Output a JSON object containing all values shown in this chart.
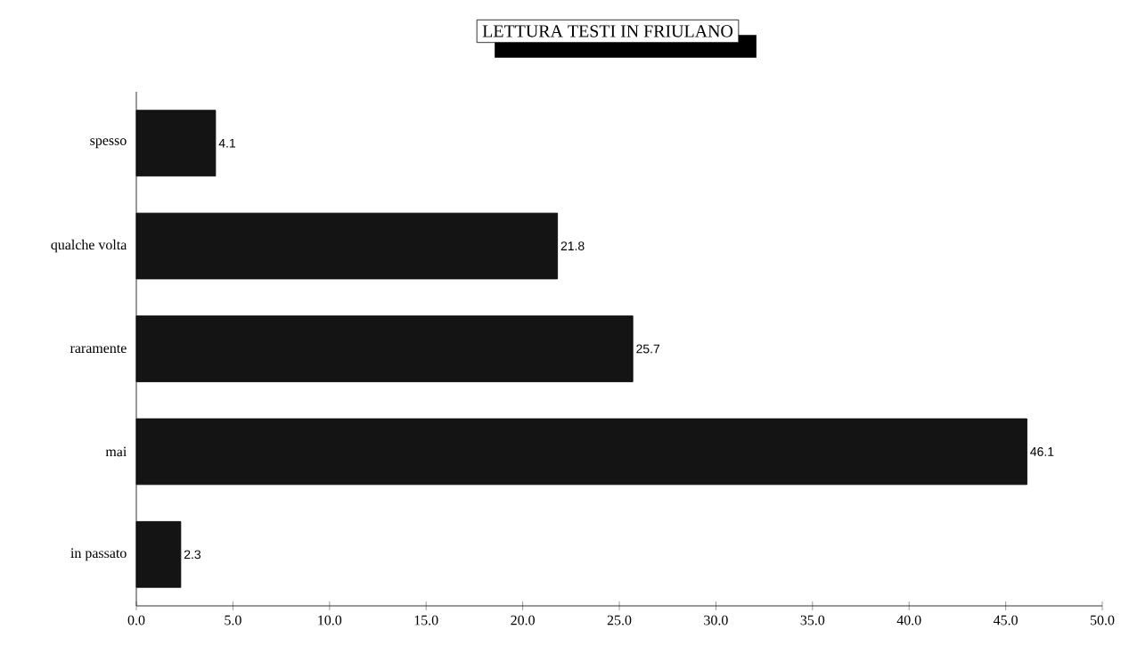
{
  "chart_data": {
    "type": "bar",
    "orientation": "horizontal",
    "title": "LETTURA TESTI IN FRIULANO",
    "categories": [
      "spesso",
      "qualche volta",
      "raramente",
      "mai",
      "in passato"
    ],
    "values": [
      4.1,
      21.8,
      25.7,
      46.1,
      2.3
    ],
    "color": "#141414",
    "data_labels": true,
    "xlim": [
      0,
      50
    ],
    "xticks": [
      {
        "value": 0,
        "label": "0.0"
      },
      {
        "value": 5,
        "label": "5.0"
      },
      {
        "value": 10,
        "label": "10.0"
      },
      {
        "value": 15,
        "label": "15.0"
      },
      {
        "value": 20,
        "label": "20.0"
      },
      {
        "value": 25,
        "label": "25.0"
      },
      {
        "value": 30,
        "label": "30.0"
      },
      {
        "value": 35,
        "label": "35.0"
      },
      {
        "value": 40,
        "label": "40.0"
      },
      {
        "value": 45,
        "label": "45.0"
      },
      {
        "value": 50,
        "label": "50.0"
      }
    ],
    "grid": false
  }
}
